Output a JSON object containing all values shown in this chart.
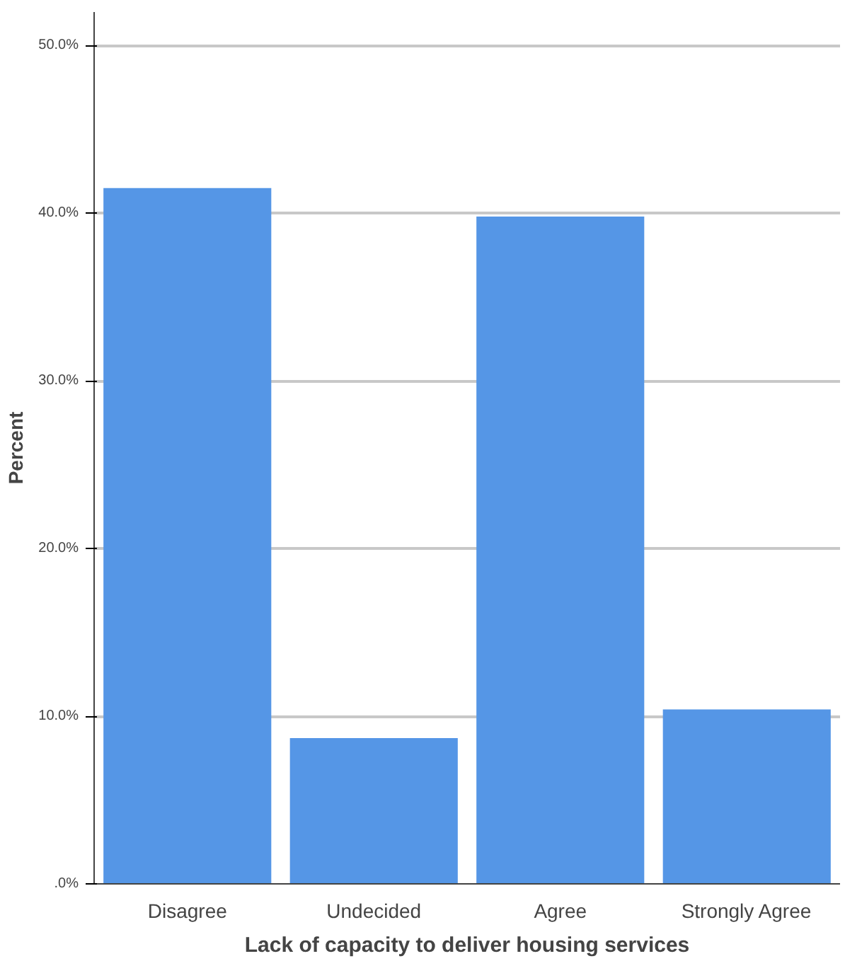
{
  "chart_data": {
    "type": "bar",
    "xlabel": "Lack of capacity to deliver housing services",
    "ylabel": "Percent",
    "categories": [
      "Disagree",
      "Undecided",
      "Agree",
      "Strongly Agree"
    ],
    "values": [
      41.5,
      8.7,
      39.8,
      10.4
    ],
    "color": "#5596e6",
    "ylim": [
      0,
      52
    ],
    "yticks": [
      {
        "value": 0,
        "label": ".0%"
      },
      {
        "value": 10,
        "label": "10.0%"
      },
      {
        "value": 20,
        "label": "20.0%"
      },
      {
        "value": 30,
        "label": "30.0%"
      },
      {
        "value": 40,
        "label": "40.0%"
      },
      {
        "value": 50,
        "label": "50.0%"
      }
    ],
    "grid": "y"
  }
}
